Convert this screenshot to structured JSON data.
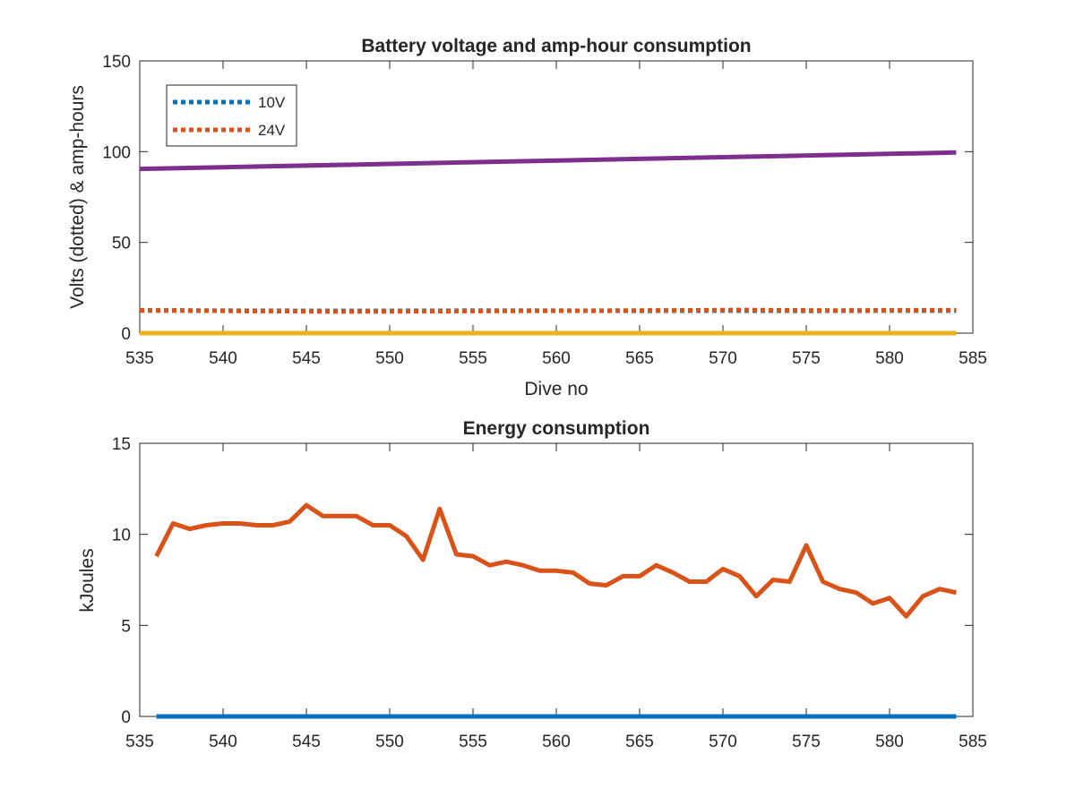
{
  "chart_data": [
    {
      "type": "line",
      "title": "Battery voltage and amp-hour consumption",
      "xlabel": "Dive no",
      "ylabel": "Volts (dotted) & amp-hours",
      "xlim": [
        535,
        585
      ],
      "ylim": [
        0,
        150
      ],
      "xticks": [
        "535",
        "540",
        "545",
        "550",
        "555",
        "560",
        "565",
        "570",
        "575",
        "580",
        "585"
      ],
      "yticks": [
        "0",
        "50",
        "100",
        "150"
      ],
      "grid": false,
      "legend_position": "top-left",
      "colors": {
        "blue": "#0072BD",
        "orange": "#D95319",
        "yellow": "#EDB120",
        "purple": "#7E2F8E"
      },
      "series": [
        {
          "name": "10V",
          "style": "dotted",
          "color": "#0072BD",
          "x": [
            535,
            540,
            545,
            550,
            555,
            560,
            565,
            570,
            575,
            580,
            584
          ],
          "y": [
            12.5,
            12.4,
            12.3,
            12.3,
            12.4,
            12.4,
            12.3,
            12.4,
            12.3,
            12.4,
            12.4
          ]
        },
        {
          "name": "24V",
          "style": "dotted",
          "color": "#D95319",
          "x": [
            535,
            538,
            541,
            544,
            547,
            550,
            553,
            556,
            559,
            562,
            565,
            568,
            571,
            574,
            577,
            580,
            584
          ],
          "y": [
            12.6,
            12.5,
            12.2,
            12.1,
            11.9,
            12.0,
            12.1,
            12.2,
            12.3,
            12.4,
            12.5,
            12.6,
            12.8,
            12.6,
            12.5,
            12.6,
            12.7
          ]
        },
        {
          "style": "solid",
          "color": "#7E2F8E",
          "x": [
            535,
            584
          ],
          "y": [
            90.5,
            99.5
          ]
        },
        {
          "style": "solid",
          "color": "#EDB120",
          "x": [
            535,
            584
          ],
          "y": [
            0,
            0
          ]
        }
      ]
    },
    {
      "type": "line",
      "title": "Energy consumption",
      "xlabel": "",
      "ylabel": "kJoules",
      "xlim": [
        535,
        585
      ],
      "ylim": [
        0,
        15
      ],
      "xticks": [
        "535",
        "540",
        "545",
        "550",
        "555",
        "560",
        "565",
        "570",
        "575",
        "580",
        "585"
      ],
      "yticks": [
        "0",
        "5",
        "10",
        "15"
      ],
      "grid": false,
      "series": [
        {
          "style": "solid",
          "color": "#D95319",
          "x": [
            536,
            537,
            538,
            539,
            540,
            541,
            542,
            543,
            544,
            545,
            546,
            547,
            548,
            549,
            550,
            551,
            552,
            553,
            554,
            555,
            556,
            557,
            558,
            559,
            560,
            561,
            562,
            563,
            564,
            565,
            566,
            567,
            568,
            569,
            570,
            571,
            572,
            573,
            574,
            575,
            576,
            577,
            578,
            579,
            580,
            581,
            582,
            583,
            584
          ],
          "y": [
            8.8,
            10.6,
            10.3,
            10.5,
            10.6,
            10.6,
            10.5,
            10.5,
            10.7,
            11.6,
            11.0,
            11.0,
            11.0,
            10.5,
            10.5,
            9.9,
            8.6,
            11.4,
            8.9,
            8.8,
            8.3,
            8.5,
            8.3,
            8.0,
            8.0,
            7.9,
            7.3,
            7.2,
            7.7,
            7.7,
            8.3,
            7.9,
            7.4,
            7.4,
            8.1,
            7.7,
            6.6,
            7.5,
            7.4,
            9.4,
            7.4,
            7.0,
            6.8,
            6.2,
            6.5,
            5.5,
            6.6,
            7.0,
            6.8
          ]
        },
        {
          "style": "solid",
          "color": "#0072BD",
          "x": [
            536,
            584
          ],
          "y": [
            0,
            0
          ]
        }
      ]
    }
  ]
}
